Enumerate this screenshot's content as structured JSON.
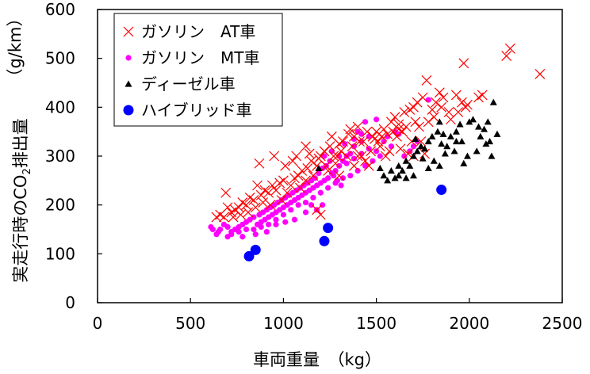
{
  "chart_data": {
    "type": "scatter",
    "title": "",
    "xlabel": "車両重量　（kg）",
    "ylabel_main": "実走行時のCO",
    "ylabel_sub": "2",
    "ylabel_tail": "排出量",
    "ylabel_unit": "（g/km）",
    "xlim": [
      0,
      2500
    ],
    "ylim": [
      0,
      600
    ],
    "x_ticks": [
      "0",
      "500",
      "1000",
      "1500",
      "2000",
      "2500"
    ],
    "y_ticks": [
      "0",
      "100",
      "200",
      "300",
      "400",
      "500",
      "600"
    ],
    "grid": false,
    "legend_position": "top-left",
    "series": [
      {
        "name": "ガソリン　AT車",
        "marker": "x",
        "color": "#ff0000",
        "points": [
          [
            2380,
            468
          ],
          [
            2220,
            520
          ],
          [
            2200,
            505
          ],
          [
            1970,
            490
          ],
          [
            1930,
            425
          ],
          [
            1960,
            410
          ],
          [
            2050,
            420
          ],
          [
            2070,
            425
          ],
          [
            1980,
            400
          ],
          [
            1770,
            455
          ],
          [
            1750,
            420
          ],
          [
            1840,
            430
          ],
          [
            1820,
            410
          ],
          [
            1890,
            390
          ],
          [
            1720,
            410
          ],
          [
            1700,
            400
          ],
          [
            1680,
            395
          ],
          [
            1650,
            390
          ],
          [
            1600,
            380
          ],
          [
            1620,
            365
          ],
          [
            1580,
            370
          ],
          [
            1540,
            355
          ],
          [
            1560,
            345
          ],
          [
            1500,
            350
          ],
          [
            1510,
            330
          ],
          [
            1480,
            340
          ],
          [
            1450,
            350
          ],
          [
            1430,
            330
          ],
          [
            1400,
            360
          ],
          [
            1380,
            340
          ],
          [
            1350,
            345
          ],
          [
            1320,
            330
          ],
          [
            1300,
            325
          ],
          [
            1290,
            300
          ],
          [
            1250,
            320
          ],
          [
            1220,
            310
          ],
          [
            1200,
            300
          ],
          [
            1180,
            280
          ],
          [
            1150,
            290
          ],
          [
            1130,
            275
          ],
          [
            1100,
            270
          ],
          [
            1080,
            260
          ],
          [
            1060,
            255
          ],
          [
            1040,
            240
          ],
          [
            1000,
            250
          ],
          [
            980,
            245
          ],
          [
            960,
            230
          ],
          [
            940,
            240
          ],
          [
            920,
            225
          ],
          [
            900,
            230
          ],
          [
            880,
            220
          ],
          [
            860,
            240
          ],
          [
            840,
            210
          ],
          [
            820,
            215
          ],
          [
            800,
            200
          ],
          [
            780,
            205
          ],
          [
            760,
            195
          ],
          [
            740,
            190
          ],
          [
            720,
            185
          ],
          [
            700,
            195
          ],
          [
            690,
            225
          ],
          [
            680,
            175
          ],
          [
            660,
            180
          ],
          [
            640,
            175
          ],
          [
            870,
            285
          ],
          [
            950,
            300
          ],
          [
            1050,
            290
          ],
          [
            1120,
            320
          ],
          [
            1260,
            340
          ],
          [
            1360,
            355
          ],
          [
            1420,
            300
          ],
          [
            1470,
            310
          ],
          [
            1520,
            320
          ],
          [
            1610,
            340
          ],
          [
            1660,
            360
          ],
          [
            1690,
            330
          ],
          [
            1730,
            360
          ],
          [
            1780,
            370
          ],
          [
            1810,
            380
          ],
          [
            1850,
            400
          ],
          [
            1900,
            375
          ],
          [
            1940,
            390
          ],
          [
            1990,
            405
          ],
          [
            1200,
            180
          ],
          [
            1180,
            190
          ],
          [
            1300,
            260
          ],
          [
            1380,
            280
          ],
          [
            1440,
            290
          ],
          [
            1550,
            300
          ],
          [
            1570,
            310
          ],
          [
            1630,
            315
          ],
          [
            1700,
            300
          ],
          [
            1760,
            305
          ],
          [
            1740,
            330
          ],
          [
            1670,
            305
          ],
          [
            1640,
            350
          ],
          [
            1460,
            280
          ],
          [
            1400,
            300
          ],
          [
            1340,
            300
          ],
          [
            1280,
            285
          ],
          [
            1240,
            270
          ],
          [
            1160,
            260
          ],
          [
            1120,
            250
          ],
          [
            1090,
            235
          ],
          [
            1020,
            225
          ],
          [
            990,
            210
          ],
          [
            930,
            200
          ],
          [
            890,
            205
          ],
          [
            850,
            195
          ],
          [
            810,
            185
          ],
          [
            770,
            180
          ],
          [
            730,
            175
          ],
          [
            1010,
            280
          ],
          [
            1070,
            300
          ],
          [
            1140,
            305
          ],
          [
            1190,
            295
          ],
          [
            1230,
            280
          ],
          [
            1270,
            300
          ],
          [
            1310,
            310
          ],
          [
            1370,
            320
          ],
          [
            1410,
            330
          ],
          [
            1490,
            335
          ],
          [
            1530,
            340
          ],
          [
            1590,
            350
          ],
          [
            1620,
            355
          ],
          [
            1710,
            370
          ],
          [
            1800,
            395
          ],
          [
            1860,
            420
          ]
        ]
      },
      {
        "name": "ガソリン　MT車",
        "marker": "dot",
        "color": "#ff00ff",
        "points": [
          [
            1780,
            415
          ],
          [
            1500,
            375
          ],
          [
            1440,
            370
          ],
          [
            1400,
            350
          ],
          [
            1460,
            340
          ],
          [
            1420,
            330
          ],
          [
            1380,
            320
          ],
          [
            1360,
            305
          ],
          [
            1340,
            300
          ],
          [
            1320,
            290
          ],
          [
            1300,
            280
          ],
          [
            1280,
            270
          ],
          [
            1260,
            265
          ],
          [
            1240,
            255
          ],
          [
            1220,
            250
          ],
          [
            1200,
            245
          ],
          [
            1180,
            240
          ],
          [
            1160,
            235
          ],
          [
            1140,
            230
          ],
          [
            1120,
            225
          ],
          [
            1100,
            220
          ],
          [
            1080,
            215
          ],
          [
            1060,
            210
          ],
          [
            1040,
            205
          ],
          [
            1020,
            200
          ],
          [
            1000,
            195
          ],
          [
            980,
            190
          ],
          [
            960,
            185
          ],
          [
            940,
            180
          ],
          [
            920,
            175
          ],
          [
            900,
            170
          ],
          [
            880,
            165
          ],
          [
            860,
            160
          ],
          [
            840,
            175
          ],
          [
            820,
            170
          ],
          [
            800,
            165
          ],
          [
            780,
            160
          ],
          [
            760,
            155
          ],
          [
            740,
            150
          ],
          [
            720,
            145
          ],
          [
            700,
            155
          ],
          [
            680,
            160
          ],
          [
            660,
            150
          ],
          [
            640,
            140
          ],
          [
            620,
            150
          ],
          [
            610,
            155
          ],
          [
            1500,
            310
          ],
          [
            1520,
            300
          ],
          [
            1480,
            290
          ],
          [
            1440,
            280
          ],
          [
            1400,
            270
          ],
          [
            1360,
            260
          ],
          [
            1320,
            255
          ],
          [
            1280,
            245
          ],
          [
            1240,
            235
          ],
          [
            1200,
            225
          ],
          [
            1160,
            215
          ],
          [
            1120,
            205
          ],
          [
            1080,
            200
          ],
          [
            1040,
            190
          ],
          [
            1000,
            180
          ],
          [
            960,
            170
          ],
          [
            920,
            160
          ],
          [
            880,
            155
          ],
          [
            840,
            150
          ],
          [
            800,
            150
          ],
          [
            760,
            145
          ],
          [
            720,
            140
          ],
          [
            1210,
            275
          ],
          [
            1190,
            265
          ],
          [
            1170,
            255
          ],
          [
            1150,
            250
          ],
          [
            1130,
            245
          ],
          [
            1110,
            240
          ],
          [
            1090,
            235
          ],
          [
            1070,
            230
          ],
          [
            1050,
            225
          ],
          [
            1030,
            220
          ],
          [
            1010,
            215
          ],
          [
            990,
            210
          ],
          [
            970,
            205
          ],
          [
            950,
            200
          ],
          [
            930,
            195
          ],
          [
            910,
            190
          ],
          [
            890,
            185
          ],
          [
            870,
            180
          ],
          [
            1300,
            300
          ],
          [
            1340,
            285
          ],
          [
            1380,
            295
          ],
          [
            1420,
            305
          ],
          [
            1460,
            315
          ],
          [
            1250,
            290
          ],
          [
            1230,
            280
          ],
          [
            1270,
            260
          ],
          [
            1290,
            250
          ],
          [
            1310,
            240
          ],
          [
            1210,
            200
          ],
          [
            1180,
            190
          ],
          [
            1150,
            200
          ],
          [
            1120,
            185
          ],
          [
            1060,
            170
          ],
          [
            1010,
            165
          ],
          [
            960,
            160
          ],
          [
            910,
            145
          ],
          [
            850,
            140
          ],
          [
            780,
            135
          ],
          [
            700,
            135
          ],
          [
            650,
            145
          ],
          [
            1540,
            330
          ],
          [
            1560,
            340
          ],
          [
            1600,
            350
          ],
          [
            1620,
            345
          ],
          [
            1650,
            300
          ],
          [
            1700,
            320
          ],
          [
            1720,
            330
          ],
          [
            1680,
            310
          ],
          [
            1580,
            320
          ],
          [
            1420,
            345
          ],
          [
            1380,
            335
          ],
          [
            1330,
            325
          ],
          [
            1260,
            310
          ],
          [
            1220,
            300
          ]
        ]
      },
      {
        "name": "ディーゼル車",
        "marker": "triangle",
        "color": "#000000",
        "points": [
          [
            2130,
            410
          ],
          [
            2020,
            375
          ],
          [
            2000,
            370
          ],
          [
            2050,
            360
          ],
          [
            2080,
            355
          ],
          [
            2100,
            370
          ],
          [
            2060,
            340
          ],
          [
            2110,
            330
          ],
          [
            2150,
            345
          ],
          [
            1950,
            365
          ],
          [
            1930,
            350
          ],
          [
            1900,
            340
          ],
          [
            1880,
            320
          ],
          [
            1860,
            345
          ],
          [
            1840,
            370
          ],
          [
            1830,
            350
          ],
          [
            1800,
            340
          ],
          [
            1780,
            330
          ],
          [
            1760,
            315
          ],
          [
            1740,
            320
          ],
          [
            1720,
            310
          ],
          [
            1700,
            300
          ],
          [
            1680,
            280
          ],
          [
            1660,
            290
          ],
          [
            1640,
            270
          ],
          [
            1620,
            260
          ],
          [
            1600,
            255
          ],
          [
            1580,
            270
          ],
          [
            1560,
            250
          ],
          [
            1540,
            260
          ],
          [
            1520,
            275
          ],
          [
            1850,
            325
          ],
          [
            1870,
            305
          ],
          [
            1920,
            310
          ],
          [
            1960,
            330
          ],
          [
            1990,
            300
          ],
          [
            2040,
            310
          ],
          [
            2090,
            325
          ],
          [
            2120,
            300
          ],
          [
            1840,
            280
          ],
          [
            1970,
            285
          ],
          [
            1930,
            330
          ],
          [
            1810,
            290
          ],
          [
            1750,
            295
          ],
          [
            1780,
            275
          ],
          [
            1700,
            260
          ],
          [
            1660,
            255
          ],
          [
            1620,
            280
          ],
          [
            1190,
            275
          ],
          [
            1710,
            335
          ]
        ]
      },
      {
        "name": "ハイブリッド車",
        "marker": "circle",
        "color": "#0000ff",
        "points": [
          [
            815,
            95
          ],
          [
            850,
            108
          ],
          [
            1220,
            126
          ],
          [
            1240,
            153
          ],
          [
            1850,
            231
          ]
        ]
      }
    ]
  }
}
